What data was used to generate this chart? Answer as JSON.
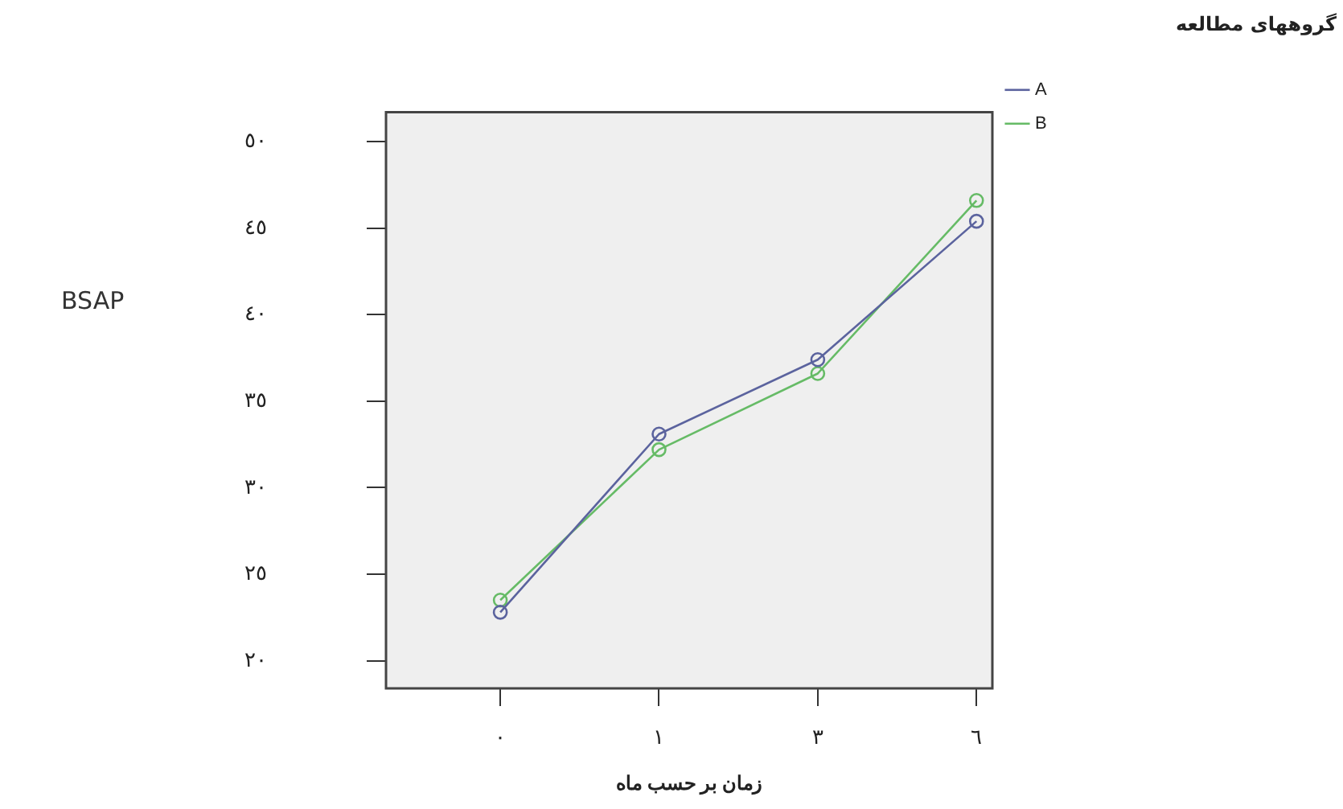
{
  "chart_data": {
    "type": "line",
    "xlabel": "زمان بر حسب ماه",
    "ylabel": "BSAP",
    "legend_title": "گروههای مطالعه",
    "categories": [
      "٠",
      "١",
      "٣",
      "٦"
    ],
    "series": [
      {
        "name": "A",
        "color": "#5b639e",
        "values": [
          22.8,
          33.1,
          37.4,
          45.4
        ]
      },
      {
        "name": "B",
        "color": "#66bb66",
        "values": [
          23.5,
          32.2,
          36.6,
          46.6
        ]
      }
    ],
    "ylim": [
      18.4,
      51.7
    ],
    "yticks": [
      {
        "value": 20,
        "label": "٢٠"
      },
      {
        "value": 25,
        "label": "٢٥"
      },
      {
        "value": 30,
        "label": "٣٠"
      },
      {
        "value": 35,
        "label": "٣٥"
      },
      {
        "value": 40,
        "label": "٤٠"
      },
      {
        "value": 45,
        "label": "٤٥"
      },
      {
        "value": 50,
        "label": "٥٠"
      }
    ],
    "grid": false,
    "legend": "top right",
    "marker": "circle",
    "line_style": "solid"
  }
}
